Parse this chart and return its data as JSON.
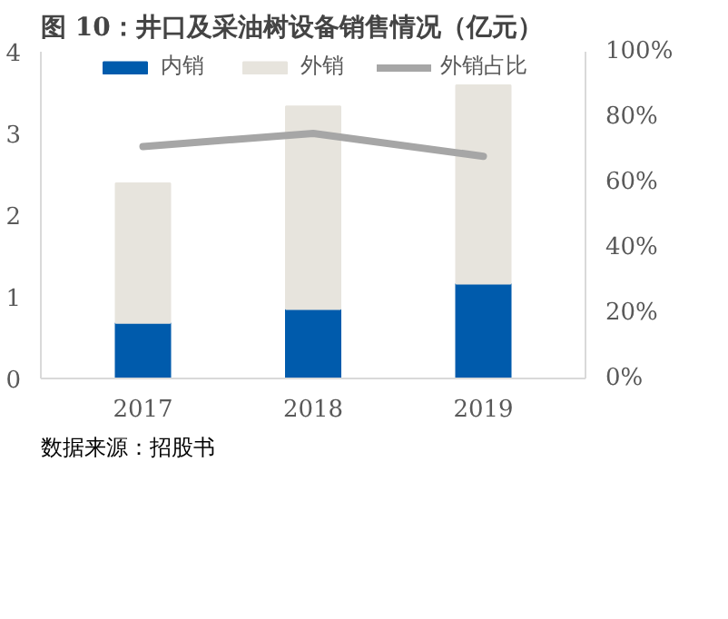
{
  "chart_data": {
    "type": "bar",
    "title": "图 10：井口及采油树设备销售情况（亿元）",
    "categories": [
      "2017",
      "2018",
      "2019"
    ],
    "stacked": true,
    "series": [
      {
        "name": "内销",
        "color": "#005bac",
        "values": [
          0.68,
          0.85,
          1.16
        ]
      },
      {
        "name": "外销",
        "color": "#e7e4dd",
        "values": [
          1.71,
          2.48,
          2.43
        ]
      },
      {
        "name": "外销占比",
        "color": "#a6a6a6",
        "type": "line",
        "axis": "y2",
        "values": [
          71,
          75,
          68
        ]
      }
    ],
    "ylim": [
      0,
      4
    ],
    "yticks": [
      0,
      1,
      2,
      3,
      4
    ],
    "y2lim": [
      0,
      100
    ],
    "y2ticks": [
      {
        "value": 0,
        "label": "0%"
      },
      {
        "value": 20,
        "label": "20%"
      },
      {
        "value": 40,
        "label": "40%"
      },
      {
        "value": 60,
        "label": "60%"
      },
      {
        "value": 80,
        "label": "80%"
      },
      {
        "value": 100,
        "label": "100%"
      }
    ],
    "legend": "top",
    "annotations": [
      "数据来源：招股书"
    ]
  }
}
